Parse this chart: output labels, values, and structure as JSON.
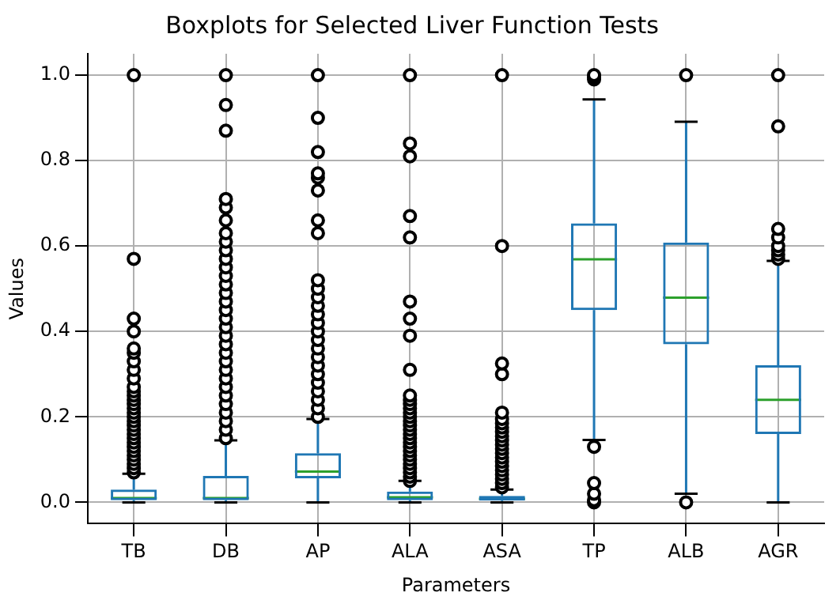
{
  "chart_data": {
    "type": "box",
    "title": "Boxplots for Selected Liver Function Tests",
    "xlabel": "Parameters",
    "ylabel": "Values",
    "categories": [
      "TB",
      "DB",
      "AP",
      "ALA",
      "ASA",
      "TP",
      "ALB",
      "AGR"
    ],
    "ylim": [
      -0.05,
      1.05
    ],
    "yticks": [
      {
        "value": 0,
        "label": "0.0"
      },
      0.2,
      0.4,
      0.6,
      0.8,
      {
        "value": 1,
        "label": "1.0"
      }
    ],
    "grid": true,
    "legend": false,
    "series": [
      {
        "color": "#1f77b4",
        "boxes": [
          {
            "low": 0,
            "q1": 0.005,
            "median": 0.01,
            "q3": 0.03,
            "high": 0.067,
            "outliers": [
              0.07,
              0.08,
              0.09,
              0.1,
              0.11,
              0.12,
              0.13,
              0.14,
              0.15,
              0.16,
              0.17,
              0.18,
              0.19,
              0.2,
              0.21,
              0.22,
              0.23,
              0.24,
              0.25,
              0.26,
              0.27,
              0.29,
              0.31,
              0.33,
              0.35,
              0.36,
              0.4,
              0.43,
              0.57,
              1.0
            ]
          },
          {
            "low": 0,
            "q1": 0.005,
            "median": 0.01,
            "q3": 0.062,
            "high": 0.145,
            "outliers": [
              0.15,
              0.17,
              0.19,
              0.21,
              0.23,
              0.25,
              0.27,
              0.29,
              0.31,
              0.33,
              0.35,
              0.37,
              0.39,
              0.41,
              0.43,
              0.45,
              0.47,
              0.49,
              0.51,
              0.53,
              0.55,
              0.57,
              0.59,
              0.61,
              0.63,
              0.66,
              0.69,
              0.71,
              0.87,
              0.93,
              1.0
            ]
          },
          {
            "low": 0,
            "q1": 0.056,
            "median": 0.072,
            "q3": 0.115,
            "high": 0.195,
            "outliers": [
              0.2,
              0.22,
              0.24,
              0.26,
              0.28,
              0.3,
              0.32,
              0.34,
              0.36,
              0.38,
              0.4,
              0.42,
              0.44,
              0.46,
              0.48,
              0.5,
              0.52,
              0.63,
              0.66,
              0.73,
              0.76,
              0.77,
              0.82,
              0.9,
              1.0
            ]
          },
          {
            "low": 0,
            "q1": 0.005,
            "median": 0.012,
            "q3": 0.025,
            "high": 0.05,
            "outliers": [
              0.05,
              0.06,
              0.07,
              0.08,
              0.09,
              0.1,
              0.11,
              0.12,
              0.13,
              0.14,
              0.15,
              0.16,
              0.17,
              0.18,
              0.19,
              0.2,
              0.21,
              0.22,
              0.23,
              0.24,
              0.25,
              0.31,
              0.39,
              0.43,
              0.47,
              0.62,
              0.67,
              0.81,
              0.84,
              1.0
            ]
          },
          {
            "low": 0,
            "q1": 0.004,
            "median": 0.008,
            "q3": 0.015,
            "high": 0.03,
            "outliers": [
              0.035,
              0.045,
              0.055,
              0.065,
              0.075,
              0.085,
              0.095,
              0.105,
              0.115,
              0.125,
              0.135,
              0.145,
              0.155,
              0.165,
              0.175,
              0.185,
              0.195,
              0.21,
              0.3,
              0.325,
              0.6,
              1.0
            ]
          },
          {
            "low": 0.146,
            "q1": 0.45,
            "median": 0.569,
            "q3": 0.653,
            "high": 0.943,
            "outliers": [
              0,
              0.005,
              0.02,
              0.045,
              0.13,
              0.99,
              0.995,
              1.0
            ]
          },
          {
            "low": 0.02,
            "q1": 0.37,
            "median": 0.479,
            "q3": 0.608,
            "high": 0.891,
            "outliers": [
              0,
              1.0
            ]
          },
          {
            "low": 0,
            "q1": 0.16,
            "median": 0.24,
            "q3": 0.321,
            "high": 0.565,
            "outliers": [
              0.57,
              0.58,
              0.59,
              0.6,
              0.62,
              0.64,
              0.88,
              1.0
            ]
          }
        ]
      }
    ]
  }
}
